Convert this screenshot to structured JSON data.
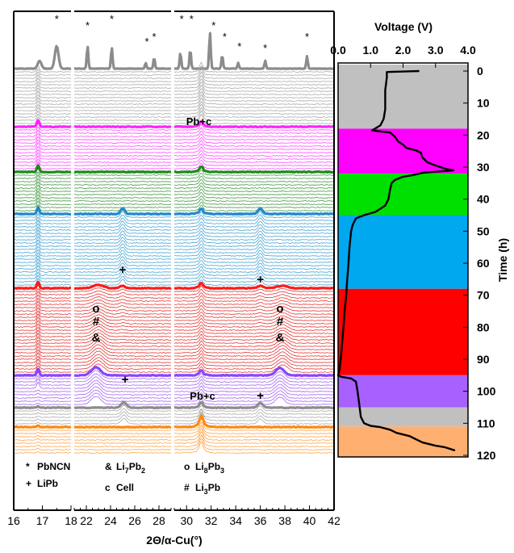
{
  "chart_data": {
    "type": "line",
    "xlabel": "2Θ/α-Cu(°)",
    "panels": [
      {
        "name": "panel-1",
        "xlim": [
          16,
          18
        ],
        "ticks": [
          16,
          17,
          18
        ]
      },
      {
        "name": "panel-2",
        "xlim": [
          21,
          29
        ],
        "ticks": [
          22,
          24,
          26,
          28
        ]
      },
      {
        "name": "panel-3",
        "xlim": [
          29,
          42
        ],
        "ticks": [
          30,
          32,
          34,
          36,
          38,
          40,
          42
        ]
      }
    ],
    "xrd_segments": [
      {
        "name": "gray-top",
        "color": "#a0a0a0",
        "bold_color": "#8c8c8c",
        "start_h": 0,
        "end_h": 18
      },
      {
        "name": "magenta",
        "color": "#ff33ff",
        "bold_color": "#ff22ff",
        "start_h": 18,
        "end_h": 32
      },
      {
        "name": "green",
        "color": "#2e8b2e",
        "bold_color": "#1e8a1e",
        "start_h": 32,
        "end_h": 45
      },
      {
        "name": "blue",
        "color": "#3399cc",
        "bold_color": "#2288cc",
        "start_h": 45,
        "end_h": 68
      },
      {
        "name": "red",
        "color": "#e02020",
        "bold_color": "#ff1a1a",
        "start_h": 68,
        "end_h": 95
      },
      {
        "name": "purple",
        "color": "#9955ee",
        "bold_color": "#8844ff",
        "start_h": 95,
        "end_h": 105
      },
      {
        "name": "gray-mid",
        "color": "#a0a0a0",
        "bold_color": "#8c8c8c",
        "start_h": 105,
        "end_h": 111
      },
      {
        "name": "orange",
        "color": "#ff9933",
        "bold_color": "#ff8811",
        "start_h": 111,
        "end_h": 120
      }
    ],
    "peak_markers": [
      {
        "symbol": "*",
        "two_theta": 17.5
      },
      {
        "symbol": "*",
        "two_theta": 22.1
      },
      {
        "symbol": "*",
        "two_theta": 24.1
      },
      {
        "symbol": "*",
        "two_theta": 27.0
      },
      {
        "symbol": "*",
        "two_theta": 27.6
      },
      {
        "symbol": "*",
        "two_theta": 29.6
      },
      {
        "symbol": "*",
        "two_theta": 30.4
      },
      {
        "symbol": "*",
        "two_theta": 32.2
      },
      {
        "symbol": "*",
        "two_theta": 33.1
      },
      {
        "symbol": "*",
        "two_theta": 34.3
      },
      {
        "symbol": "*",
        "two_theta": 36.4
      },
      {
        "symbol": "*",
        "two_theta": 39.8
      }
    ],
    "annotations": [
      {
        "text": "Pb+c",
        "two_theta": 31.0,
        "time_h": 18
      },
      {
        "text": "+",
        "two_theta": 25.0,
        "time_h": 64
      },
      {
        "text": "+",
        "two_theta": 36.0,
        "time_h": 67
      },
      {
        "text": "o",
        "two_theta": 22.8,
        "time_h": 76
      },
      {
        "text": "#",
        "two_theta": 22.8,
        "time_h": 80
      },
      {
        "text": "&",
        "two_theta": 22.8,
        "time_h": 85
      },
      {
        "text": "o",
        "two_theta": 37.6,
        "time_h": 76
      },
      {
        "text": "#",
        "two_theta": 37.6,
        "time_h": 80
      },
      {
        "text": "&",
        "two_theta": 37.6,
        "time_h": 85
      },
      {
        "text": "+",
        "two_theta": 25.2,
        "time_h": 98
      },
      {
        "text": "+",
        "two_theta": 36.0,
        "time_h": 103
      },
      {
        "text": "Pb+c",
        "two_theta": 31.3,
        "time_h": 103
      }
    ],
    "legend": [
      {
        "symbol": "*",
        "label": "PbNCN",
        "sub": ""
      },
      {
        "symbol": "+",
        "label": "LiPb",
        "sub": ""
      },
      {
        "symbol": "&",
        "label": "Li",
        "sub": "7",
        "label2": "Pb",
        "sub2": "2"
      },
      {
        "symbol": "c",
        "label": "Cell",
        "sub": ""
      },
      {
        "symbol": "o",
        "label": "Li",
        "sub": "8",
        "label2": "Pb",
        "sub2": "3"
      },
      {
        "symbol": "#",
        "label": "Li",
        "sub": "3",
        "label2": "Pb",
        "sub2": ""
      }
    ],
    "voltage_profile": {
      "xlabel": "Voltage (V)",
      "ylabel": "Time (h)",
      "xlim": [
        0.0,
        4.0
      ],
      "ylim": [
        0,
        120
      ],
      "xticks": [
        "0.0",
        "1.0",
        "2.0",
        "3.0",
        "4.0"
      ],
      "yticks": [
        0,
        10,
        20,
        30,
        40,
        50,
        60,
        70,
        80,
        90,
        100,
        110,
        120
      ],
      "bands": [
        {
          "start_h": -2,
          "end_h": 18,
          "color": "#c0c0c0"
        },
        {
          "start_h": 18,
          "end_h": 32,
          "color": "#ff00ff"
        },
        {
          "start_h": 32,
          "end_h": 45,
          "color": "#00e000"
        },
        {
          "start_h": 45,
          "end_h": 68,
          "color": "#00a8f0"
        },
        {
          "start_h": 68,
          "end_h": 95,
          "color": "#ff0000"
        },
        {
          "start_h": 95,
          "end_h": 105,
          "color": "#a860ff"
        },
        {
          "start_h": 105,
          "end_h": 111,
          "color": "#c0c0c0"
        },
        {
          "start_h": 111,
          "end_h": 122,
          "color": "#ffb070"
        }
      ],
      "curve": [
        [
          2.5,
          0
        ],
        [
          1.5,
          0.3
        ],
        [
          1.5,
          2
        ],
        [
          1.45,
          6
        ],
        [
          1.45,
          12
        ],
        [
          1.4,
          15
        ],
        [
          1.3,
          17
        ],
        [
          1.05,
          18.5
        ],
        [
          1.25,
          18.8
        ],
        [
          1.6,
          19.2
        ],
        [
          1.75,
          20.5
        ],
        [
          1.85,
          22
        ],
        [
          2.0,
          23
        ],
        [
          2.1,
          24
        ],
        [
          2.4,
          24.8
        ],
        [
          2.55,
          25.5
        ],
        [
          2.6,
          27
        ],
        [
          2.75,
          28.5
        ],
        [
          3.0,
          29.5
        ],
        [
          3.3,
          30.5
        ],
        [
          3.55,
          31
        ],
        [
          3.2,
          31.3
        ],
        [
          2.6,
          31.8
        ],
        [
          2.3,
          32.5
        ],
        [
          2.0,
          33
        ],
        [
          1.75,
          34
        ],
        [
          1.65,
          35
        ],
        [
          1.6,
          37
        ],
        [
          1.55,
          40
        ],
        [
          1.45,
          42
        ],
        [
          1.15,
          44
        ],
        [
          0.8,
          45
        ],
        [
          0.55,
          46
        ],
        [
          0.45,
          48
        ],
        [
          0.4,
          50
        ],
        [
          0.35,
          55
        ],
        [
          0.32,
          60
        ],
        [
          0.28,
          65
        ],
        [
          0.25,
          70
        ],
        [
          0.2,
          75
        ],
        [
          0.15,
          82
        ],
        [
          0.1,
          88
        ],
        [
          0.05,
          93
        ],
        [
          0.0,
          95
        ],
        [
          0.1,
          95.5
        ],
        [
          0.4,
          96
        ],
        [
          0.55,
          97
        ],
        [
          0.6,
          100
        ],
        [
          0.65,
          104
        ],
        [
          0.7,
          108
        ],
        [
          0.8,
          110
        ],
        [
          1.0,
          110.8
        ],
        [
          1.3,
          111.2
        ],
        [
          1.6,
          112
        ],
        [
          1.8,
          113
        ],
        [
          2.2,
          114
        ],
        [
          2.4,
          115
        ],
        [
          2.6,
          116
        ],
        [
          2.8,
          116.5
        ],
        [
          3.0,
          117
        ],
        [
          3.3,
          117.5
        ],
        [
          3.6,
          118.5
        ]
      ]
    }
  }
}
